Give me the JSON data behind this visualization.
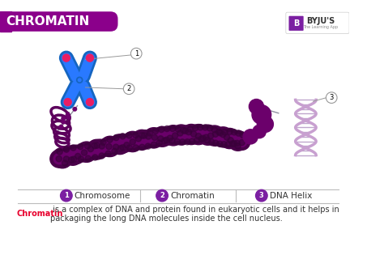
{
  "title": "CHROMATIN",
  "title_bg_color": "#8B008B",
  "title_text_color": "#FFFFFF",
  "bg_color": "#FFFFFF",
  "purple_dark": "#4B0082",
  "purple_coil": "#5C005C",
  "purple_bead": "#6B006B",
  "blue_chrom1": "#1565C0",
  "blue_chrom2": "#1E88E5",
  "red_centromere": "#E91E63",
  "label1": "Chromosome",
  "label2": "Chromatin",
  "label3": "DNA Helix",
  "legend_circle_color": "#7B1FA2",
  "separator_color": "#BBBBBB",
  "caption_keyword": "Chromatin",
  "caption_keyword_color": "#E8002D",
  "caption_text": " is a complex of DNA and protein found in eukaryotic cells and it helps in\npackaging the long DNA molecules inside the cell nucleus.",
  "caption_text_color": "#333333",
  "caption_fontsize": 7.0,
  "helix_color": "#C8A0D0",
  "helix_rung": "#B090C0",
  "string_color": "#9090A0"
}
